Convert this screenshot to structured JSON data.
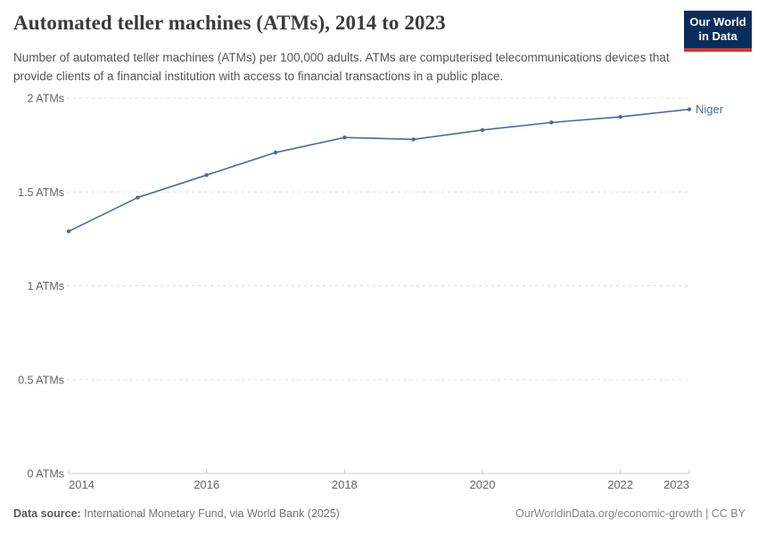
{
  "logo": {
    "line1": "Our World",
    "line2": "in Data"
  },
  "chart_data": {
    "type": "line",
    "title": "Automated teller machines (ATMs), 2014 to 2023",
    "subtitle": "Number of automated teller machines (ATMs) per 100,000 adults. ATMs are computerised telecommunications devices that provide clients of a financial institution with access to financial transactions in a public place.",
    "x": [
      2014,
      2015,
      2016,
      2017,
      2018,
      2019,
      2020,
      2021,
      2022,
      2023
    ],
    "series": [
      {
        "name": "Niger",
        "color": "#4C6A9C",
        "values": [
          1.29,
          1.47,
          1.59,
          1.71,
          1.79,
          1.78,
          1.83,
          1.87,
          1.9,
          1.94
        ]
      }
    ],
    "xlabel": "",
    "ylabel": "",
    "ylim": [
      0,
      2
    ],
    "yticks": [
      0,
      0.5,
      1,
      1.5,
      2
    ],
    "ytick_labels": [
      "0 ATMs",
      "0.5 ATMs",
      "1 ATMs",
      "1.5 ATMs",
      "2 ATMs"
    ],
    "xticks": [
      2014,
      2016,
      2018,
      2020,
      2022,
      2023
    ],
    "grid": "horizontal-dashed",
    "legend_position": "line-end"
  },
  "footer": {
    "source_label": "Data source:",
    "source_value": "International Monetary Fund, via World Bank (2025)",
    "credit": "OurWorldinData.org/economic-growth | CC BY"
  },
  "colors": {
    "line": "#4C6A9C",
    "grid": "#dddddd",
    "axis": "#cccccc",
    "tick_text": "#666666",
    "title_text": "#3b3b3b",
    "subtitle_text": "#555555",
    "footer_text": "#737373",
    "logo_bg": "#0a2e5c",
    "logo_red": "#d8352e"
  }
}
